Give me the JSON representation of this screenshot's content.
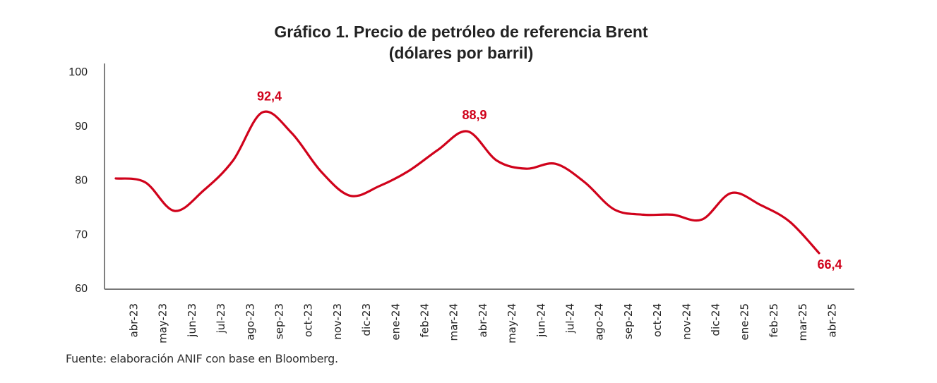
{
  "chart_data": {
    "type": "line",
    "title": "Gráfico 1. Precio de petróleo de referencia Brent",
    "subtitle": "(dólares por barril)",
    "xlabel": "",
    "ylabel": "",
    "categories": [
      "abr-23",
      "may-23",
      "jun-23",
      "jul-23",
      "ago-23",
      "sep-23",
      "oct-23",
      "nov-23",
      "dic-23",
      "ene-24",
      "feb-24",
      "mar-24",
      "abr-24",
      "may-24",
      "jun-24",
      "jul-24",
      "ago-24",
      "sep-24",
      "oct-24",
      "nov-24",
      "dic-24",
      "ene-25",
      "feb-25",
      "mar-25",
      "abr-25"
    ],
    "series": [
      {
        "values": [
          80.2,
          79.5,
          74.2,
          78.0,
          83.5,
          92.4,
          88.6,
          81.5,
          77.0,
          78.8,
          81.6,
          85.5,
          88.9,
          83.5,
          82.0,
          82.9,
          79.5,
          74.5,
          73.5,
          73.5,
          72.6,
          77.5,
          75.3,
          72.2,
          66.4
        ],
        "color": "#d0021b"
      }
    ],
    "data_labels": [
      {
        "category": "sep-23",
        "text": "92,4"
      },
      {
        "category": "abr-24",
        "text": "88,9"
      },
      {
        "category": "abr-25",
        "text": "66,4"
      }
    ],
    "ylim": [
      60,
      100
    ],
    "yticks": [
      "60",
      "70",
      "80",
      "90",
      "100"
    ],
    "grid": false,
    "smooth": true
  },
  "source": "Fuente: elaboración ANIF con base en Bloomberg."
}
